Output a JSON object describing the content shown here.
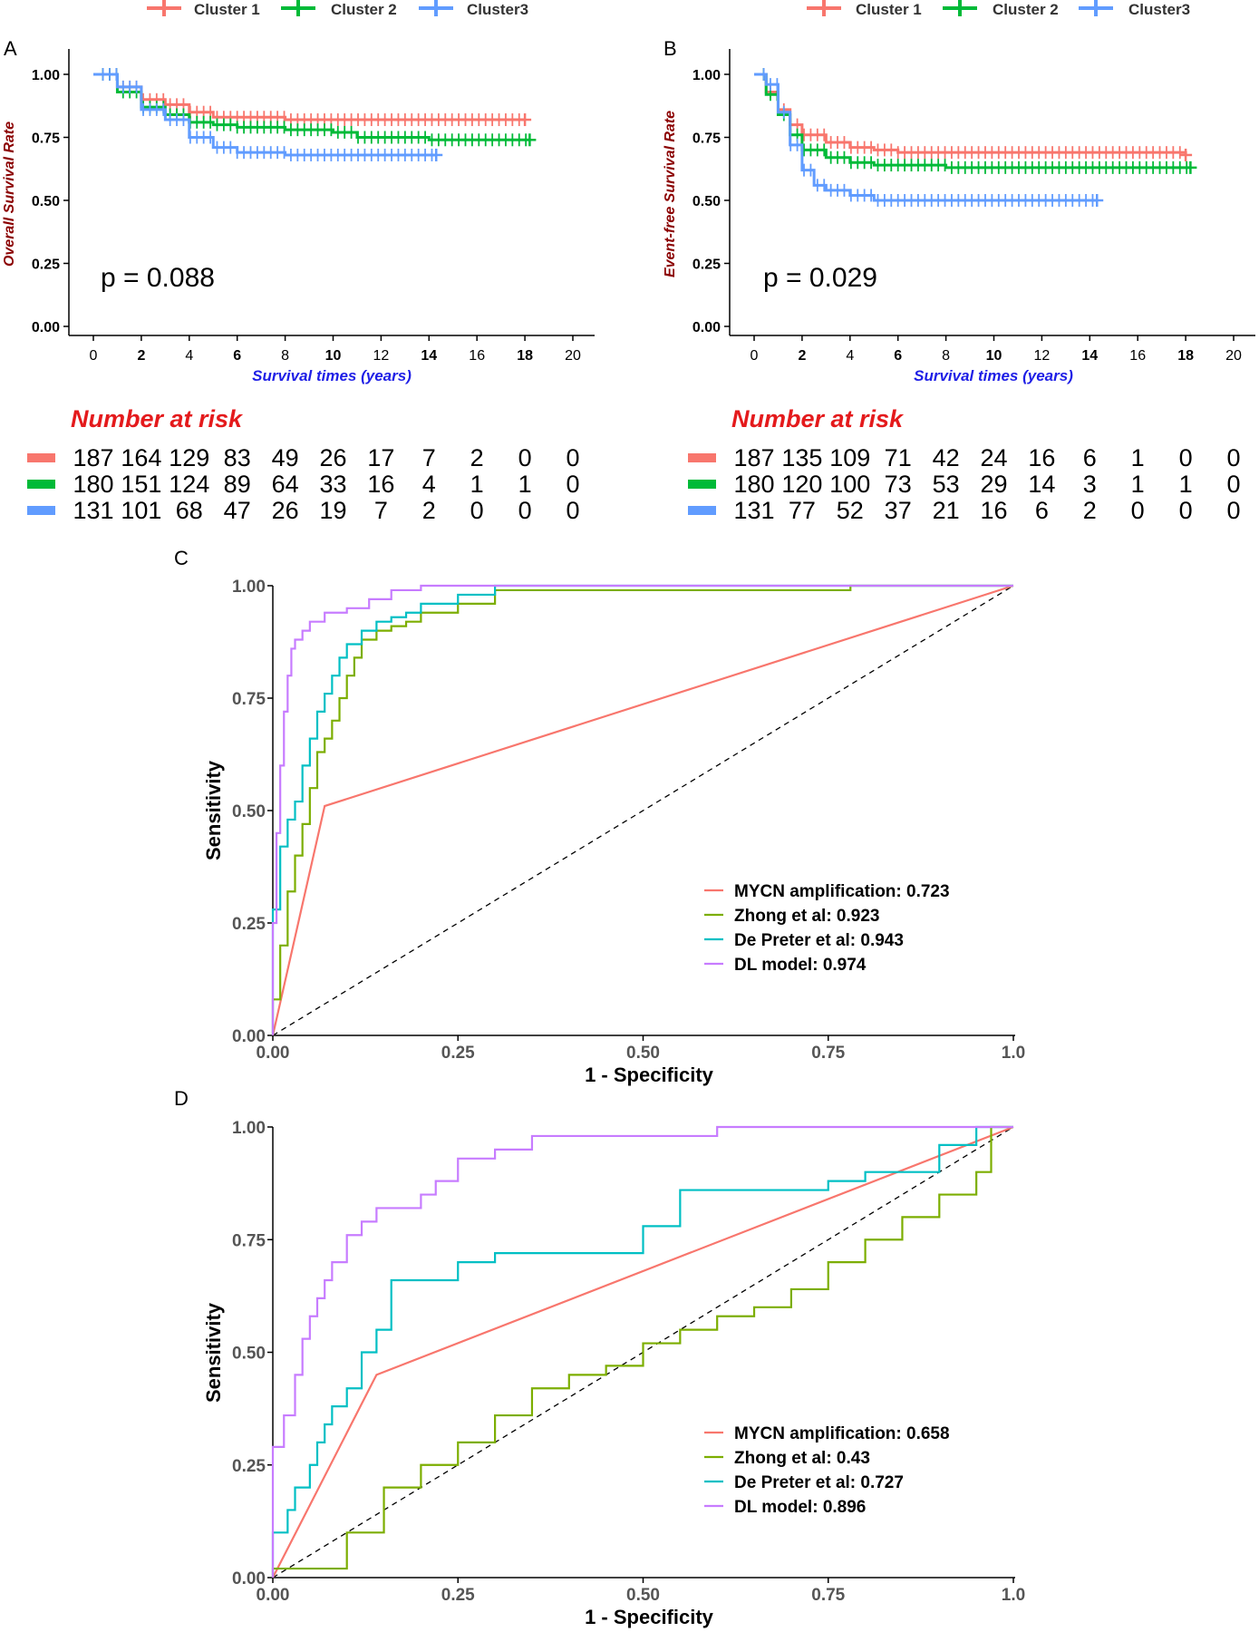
{
  "colors": {
    "cluster1": "#F8766D",
    "cluster2": "#00BA38",
    "cluster3": "#619CFF",
    "p_title": "#8B0000",
    "x_label": "#1E1EE6",
    "risk_title": "#E41A1C",
    "roc_mycn": "#F8766D",
    "roc_zhong": "#7CAE00",
    "roc_depreter": "#00BFC4",
    "roc_dl": "#C77CFF"
  },
  "panel_labels": {
    "a": "A",
    "b": "B",
    "c": "C",
    "d": "D"
  },
  "chart_data": [
    {
      "id": "A",
      "type": "line",
      "title": "",
      "legend": [
        "Cluster 1",
        "Cluster 2",
        "Cluster3"
      ],
      "legend_position": "top",
      "xlabel": "Survival times (years)",
      "ylabel": "Overall Survival Rate",
      "xlim": [
        0,
        20
      ],
      "ylim": [
        0,
        1
      ],
      "xticks": [
        "0",
        "2",
        "4",
        "6",
        "8",
        "10",
        "12",
        "14",
        "16",
        "18",
        "20"
      ],
      "yticks": [
        "0.00",
        "0.25",
        "0.50",
        "0.75",
        "1.00"
      ],
      "annotation": "p = 0.088",
      "series": [
        {
          "name": "Cluster 1",
          "x": [
            0,
            1,
            2,
            3,
            4,
            5,
            6,
            8,
            10,
            12,
            14,
            18
          ],
          "y": [
            1.0,
            0.95,
            0.9,
            0.88,
            0.85,
            0.83,
            0.83,
            0.82,
            0.82,
            0.82,
            0.82,
            0.82
          ]
        },
        {
          "name": "Cluster 2",
          "x": [
            0,
            1,
            2,
            3,
            4,
            5,
            6,
            8,
            10,
            11,
            14,
            18.2
          ],
          "y": [
            1.0,
            0.93,
            0.87,
            0.84,
            0.81,
            0.8,
            0.79,
            0.78,
            0.77,
            0.75,
            0.74,
            0.74
          ]
        },
        {
          "name": "Cluster3",
          "x": [
            0,
            1,
            2,
            3,
            4,
            5,
            6,
            8,
            10,
            12,
            14.3
          ],
          "y": [
            1.0,
            0.95,
            0.86,
            0.82,
            0.75,
            0.71,
            0.69,
            0.68,
            0.68,
            0.68,
            0.68
          ]
        }
      ],
      "risk_table": {
        "title": "Number at risk",
        "rows": [
          [
            "187",
            "164",
            "129",
            "83",
            "49",
            "26",
            "17",
            "7",
            "2",
            "0",
            "0"
          ],
          [
            "180",
            "151",
            "124",
            "89",
            "64",
            "33",
            "16",
            "4",
            "1",
            "1",
            "0"
          ],
          [
            "131",
            "101",
            "68",
            "47",
            "26",
            "19",
            "7",
            "2",
            "0",
            "0",
            "0"
          ]
        ]
      }
    },
    {
      "id": "B",
      "type": "line",
      "title": "",
      "legend": [
        "Cluster 1",
        "Cluster 2",
        "Cluster3"
      ],
      "legend_position": "top",
      "xlabel": "Survival times (years)",
      "ylabel": "Event-free Survival Rate",
      "xlim": [
        0,
        20
      ],
      "ylim": [
        0,
        1
      ],
      "xticks": [
        "0",
        "2",
        "4",
        "6",
        "8",
        "10",
        "12",
        "14",
        "16",
        "18",
        "20"
      ],
      "yticks": [
        "0.00",
        "0.25",
        "0.50",
        "0.75",
        "1.00"
      ],
      "annotation": "p = 0.029",
      "series": [
        {
          "name": "Cluster 1",
          "x": [
            0,
            0.5,
            1,
            1.5,
            2,
            3,
            4,
            5,
            6,
            8,
            10,
            14,
            18
          ],
          "y": [
            1.0,
            0.93,
            0.86,
            0.8,
            0.76,
            0.73,
            0.71,
            0.7,
            0.69,
            0.69,
            0.69,
            0.69,
            0.68
          ]
        },
        {
          "name": "Cluster 2",
          "x": [
            0,
            0.5,
            1,
            1.5,
            2,
            3,
            4,
            5,
            6,
            8,
            10,
            14,
            18.2
          ],
          "y": [
            1.0,
            0.92,
            0.84,
            0.76,
            0.7,
            0.67,
            0.65,
            0.64,
            0.64,
            0.63,
            0.63,
            0.63,
            0.63
          ]
        },
        {
          "name": "Cluster3",
          "x": [
            0,
            0.5,
            1,
            1.5,
            2,
            2.5,
            3,
            4,
            5,
            6,
            8,
            10,
            14.3
          ],
          "y": [
            1.0,
            0.96,
            0.85,
            0.72,
            0.62,
            0.56,
            0.54,
            0.52,
            0.5,
            0.5,
            0.5,
            0.5,
            0.5
          ]
        }
      ],
      "risk_table": {
        "title": "Number at risk",
        "rows": [
          [
            "187",
            "135",
            "109",
            "71",
            "42",
            "24",
            "16",
            "6",
            "1",
            "0",
            "0"
          ],
          [
            "180",
            "120",
            "100",
            "73",
            "53",
            "29",
            "14",
            "3",
            "1",
            "1",
            "0"
          ],
          [
            "131",
            "77",
            "52",
            "37",
            "21",
            "16",
            "6",
            "2",
            "0",
            "0",
            "0"
          ]
        ]
      }
    },
    {
      "id": "C",
      "type": "line",
      "title": "",
      "xlabel": "1 - Specificity",
      "ylabel": "Sensitivity",
      "xlim": [
        0,
        1
      ],
      "ylim": [
        0,
        1
      ],
      "xticks": [
        "0.00",
        "0.25",
        "0.50",
        "0.75",
        "1.0"
      ],
      "yticks": [
        "0.00",
        "0.25",
        "0.50",
        "0.75",
        "1.00"
      ],
      "legend_position": "bottom-right",
      "series": [
        {
          "name": "MYCN amplification: 0.723",
          "x": [
            0,
            0.07,
            1.0
          ],
          "y": [
            0,
            0.51,
            1.0
          ]
        },
        {
          "name": "Zhong et al: 0.923",
          "x": [
            0,
            0.01,
            0.02,
            0.03,
            0.04,
            0.05,
            0.06,
            0.07,
            0.08,
            0.09,
            0.1,
            0.11,
            0.12,
            0.14,
            0.16,
            0.18,
            0.2,
            0.25,
            0.3,
            0.35,
            0.78,
            0.78,
            1.0
          ],
          "y": [
            0,
            0.08,
            0.2,
            0.32,
            0.4,
            0.47,
            0.55,
            0.63,
            0.66,
            0.7,
            0.75,
            0.8,
            0.84,
            0.88,
            0.9,
            0.91,
            0.92,
            0.94,
            0.96,
            0.99,
            0.99,
            1.0,
            1.0
          ]
        },
        {
          "name": "De Preter et al: 0.943",
          "x": [
            0,
            0.01,
            0.02,
            0.03,
            0.04,
            0.05,
            0.06,
            0.07,
            0.08,
            0.09,
            0.1,
            0.12,
            0.14,
            0.16,
            0.18,
            0.2,
            0.25,
            0.3,
            0.31,
            1.0
          ],
          "y": [
            0,
            0.28,
            0.42,
            0.48,
            0.52,
            0.6,
            0.66,
            0.72,
            0.76,
            0.8,
            0.84,
            0.87,
            0.9,
            0.92,
            0.93,
            0.94,
            0.96,
            0.98,
            1.0,
            1.0
          ]
        },
        {
          "name": "DL model: 0.974",
          "x": [
            0,
            0.005,
            0.01,
            0.015,
            0.02,
            0.025,
            0.03,
            0.04,
            0.05,
            0.07,
            0.1,
            0.13,
            0.16,
            0.2,
            0.25,
            1.0
          ],
          "y": [
            0,
            0.25,
            0.45,
            0.6,
            0.72,
            0.8,
            0.86,
            0.88,
            0.9,
            0.92,
            0.94,
            0.95,
            0.97,
            0.99,
            1.0,
            1.0
          ]
        }
      ]
    },
    {
      "id": "D",
      "type": "line",
      "title": "",
      "xlabel": "1 - Specificity",
      "ylabel": "Sensitivity",
      "xlim": [
        0,
        1
      ],
      "ylim": [
        0,
        1
      ],
      "xticks": [
        "0.00",
        "0.25",
        "0.50",
        "0.75",
        "1.0"
      ],
      "yticks": [
        "0.00",
        "0.25",
        "0.50",
        "0.75",
        "1.00"
      ],
      "legend_position": "bottom-right",
      "series": [
        {
          "name": "MYCN amplification: 0.658",
          "x": [
            0,
            0.14,
            1.0
          ],
          "y": [
            0,
            0.45,
            1.0
          ]
        },
        {
          "name": "Zhong et al: 0.43",
          "x": [
            0,
            0.02,
            0.1,
            0.1,
            0.15,
            0.15,
            0.2,
            0.25,
            0.3,
            0.35,
            0.4,
            0.45,
            0.5,
            0.55,
            0.6,
            0.65,
            0.7,
            0.75,
            0.8,
            0.85,
            0.9,
            0.95,
            0.97,
            0.97,
            1.0
          ],
          "y": [
            0,
            0.02,
            0.02,
            0.08,
            0.1,
            0.15,
            0.2,
            0.25,
            0.3,
            0.36,
            0.42,
            0.45,
            0.47,
            0.52,
            0.55,
            0.58,
            0.6,
            0.64,
            0.7,
            0.75,
            0.8,
            0.85,
            0.9,
            0.96,
            1.0
          ]
        },
        {
          "name": "De Preter et al: 0.727",
          "x": [
            0,
            0.02,
            0.03,
            0.05,
            0.06,
            0.07,
            0.08,
            0.1,
            0.12,
            0.14,
            0.16,
            0.19,
            0.25,
            0.3,
            0.35,
            0.5,
            0.55,
            0.6,
            0.7,
            0.75,
            0.8,
            0.9,
            0.95,
            1.0
          ],
          "y": [
            0,
            0.1,
            0.15,
            0.2,
            0.25,
            0.3,
            0.34,
            0.38,
            0.42,
            0.5,
            0.55,
            0.66,
            0.66,
            0.7,
            0.72,
            0.72,
            0.78,
            0.86,
            0.86,
            0.86,
            0.88,
            0.9,
            0.96,
            1.0
          ]
        },
        {
          "name": "DL model: 0.896",
          "x": [
            0,
            0.015,
            0.03,
            0.04,
            0.05,
            0.06,
            0.07,
            0.08,
            0.1,
            0.12,
            0.14,
            0.2,
            0.22,
            0.25,
            0.3,
            0.35,
            0.4,
            0.5,
            0.6,
            0.7,
            0.8,
            1.0
          ],
          "y": [
            0,
            0.29,
            0.36,
            0.45,
            0.53,
            0.58,
            0.62,
            0.66,
            0.7,
            0.76,
            0.79,
            0.82,
            0.85,
            0.88,
            0.93,
            0.95,
            0.98,
            0.98,
            0.98,
            1.0,
            1.0,
            1.0
          ]
        }
      ]
    }
  ]
}
